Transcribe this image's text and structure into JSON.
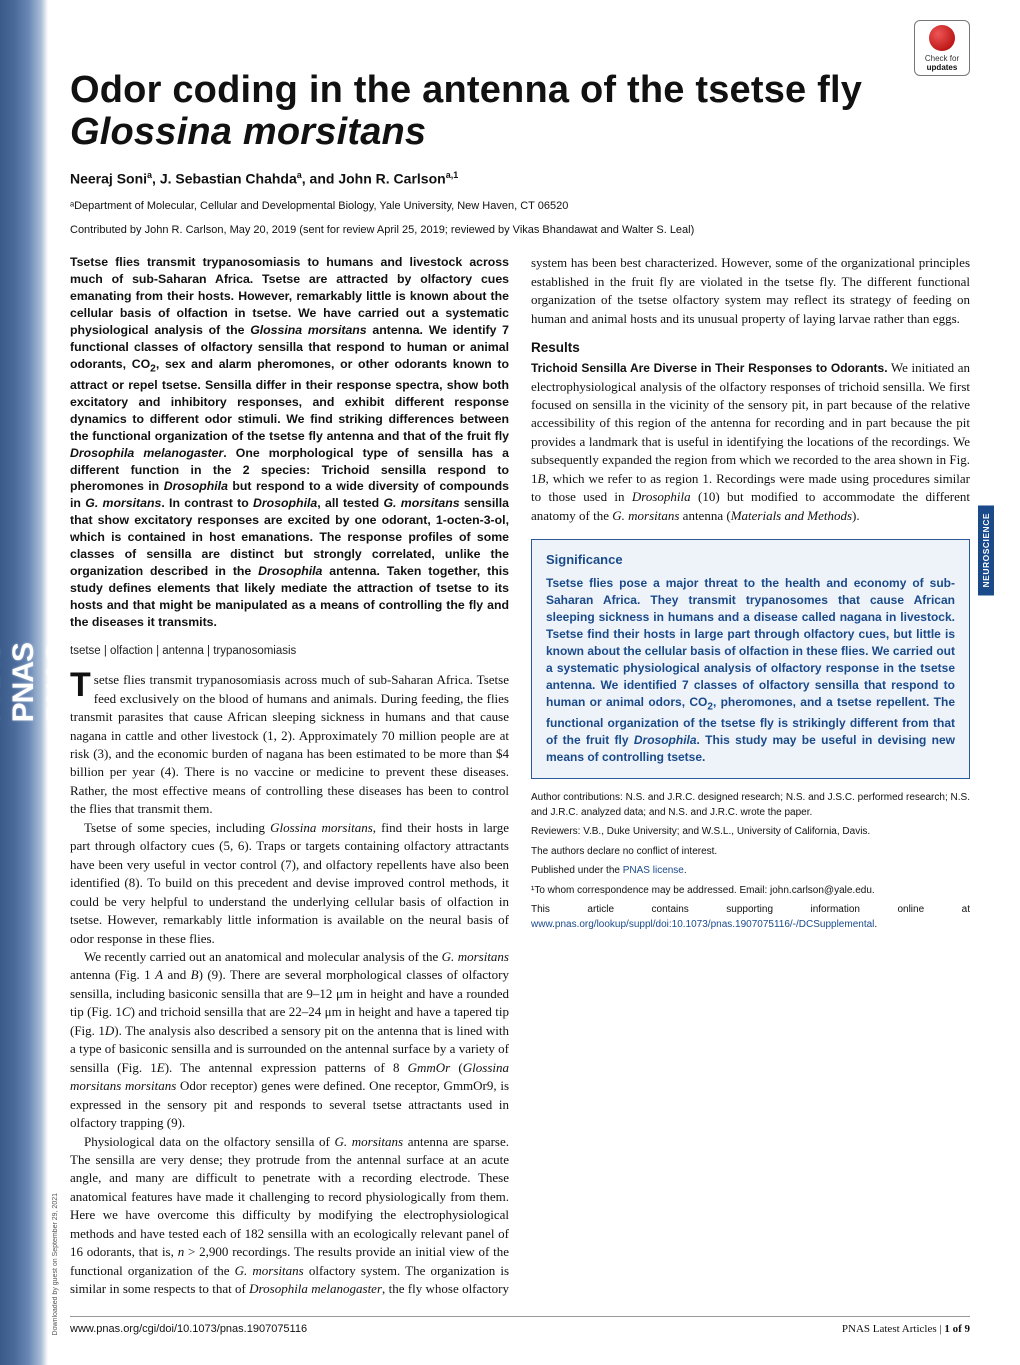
{
  "badge": {
    "line1": "Check for",
    "line2": "updates"
  },
  "title": {
    "plain": "Odor coding in the antenna of the tsetse fly",
    "italic": "Glossina morsitans"
  },
  "authors_html": "Neeraj Soni<sup>a</sup>, J. Sebastian Chahda<sup>a</sup>, and John R. Carlson<sup>a,1</sup>",
  "affiliation": "ᵃDepartment of Molecular, Cellular and Developmental Biology, Yale University, New Haven, CT 06520",
  "contributed": "Contributed by John R. Carlson, May 20, 2019 (sent for review April 25, 2019; reviewed by Vikas Bhandawat and Walter S. Leal)",
  "abstract": "Tsetse flies transmit trypanosomiasis to humans and livestock across much of sub-Saharan Africa. Tsetse are attracted by olfactory cues emanating from their hosts. However, remarkably little is known about the cellular basis of olfaction in tsetse. We have carried out a systematic physiological analysis of the <span class=\"ital\">Glossina morsitans</span> antenna. We identify 7 functional classes of olfactory sensilla that respond to human or animal odorants, CO<sub>2</sub>, sex and alarm pheromones, or other odorants known to attract or repel tsetse. Sensilla differ in their response spectra, show both excitatory and inhibitory responses, and exhibit different response dynamics to different odor stimuli. We find striking differences between the functional organization of the tsetse fly antenna and that of the fruit fly <span class=\"ital\">Drosophila melanogaster</span>. One morphological type of sensilla has a different function in the 2 species: Trichoid sensilla respond to pheromones in <span class=\"ital\">Drosophila</span> but respond to a wide diversity of compounds in <span class=\"ital\">G. morsitans</span>. In contrast to <span class=\"ital\">Drosophila</span>, all tested <span class=\"ital\">G. morsitans</span> sensilla that show excitatory responses are excited by one odorant, 1-octen-3-ol, which is contained in host emanations. The response profiles of some classes of sensilla are distinct but strongly correlated, unlike the organization described in the <span class=\"ital\">Drosophila</span> antenna. Taken together, this study defines elements that likely mediate the attraction of tsetse to its hosts and that might be manipulated as a means of controlling the fly and the diseases it transmits.",
  "keywords": "tsetse | olfaction | antenna | trypanosomiasis",
  "body_p1": "setse flies transmit trypanosomiasis across much of sub-Saharan Africa. Tsetse feed exclusively on the blood of humans and animals. During feeding, the flies transmit parasites that cause African sleeping sickness in humans and that cause nagana in cattle and other livestock (1, 2). Approximately 70 million people are at risk (3), and the economic burden of nagana has been estimated to be more than $4 billion per year (4). There is no vaccine or medicine to prevent these diseases. Rather, the most effective means of controlling these diseases has been to control the flies that transmit them.",
  "body_p2": "Tsetse of some species, including <i>Glossina morsitans</i>, find their hosts in large part through olfactory cues (5, 6). Traps or targets containing olfactory attractants have been very useful in vector control (7), and olfactory repellents have also been identified (8). To build on this precedent and devise improved control methods, it could be very helpful to understand the underlying cellular basis of olfaction in tsetse. However, remarkably little information is available on the neural basis of odor response in these flies.",
  "body_p3": "We recently carried out an anatomical and molecular analysis of the <i>G. morsitans</i> antenna (Fig. 1 <i>A</i> and <i>B</i>) (9). There are several morphological classes of olfactory sensilla, including basiconic sensilla that are 9–12 μm in height and have a rounded tip (Fig. 1<i>C</i>) and trichoid sensilla that are 22–24 μm in height and have a tapered tip (Fig. 1<i>D</i>). The analysis also described a sensory pit on the antenna that is lined with a type of basiconic sensilla and is surrounded on the antennal surface by a variety of sensilla (Fig. 1<i>E</i>). The antennal expression patterns of 8 <i>GmmOr</i> (<i>Glossina morsitans morsitans</i> Odor receptor) genes were defined. One receptor, GmmOr9, is expressed in the sensory pit and responds to several tsetse attractants used in olfactory trapping (9).",
  "col2_p1": "Physiological data on the olfactory sensilla of <i>G. morsitans</i> antenna are sparse. The sensilla are very dense; they protrude from the antennal surface at an acute angle, and many are difficult to penetrate with a recording electrode. These anatomical features have made it challenging to record physiologically from them. Here we have overcome this difficulty by modifying the electrophysiological methods and have tested each of 182 sensilla with an ecologically relevant panel of 16 odorants, that is, <i>n</i> &gt; 2,900 recordings. The results provide an initial view of the functional organization of the <i>G. morsitans</i> olfactory system. The organization is similar in some respects to that of <i>Drosophila melanogaster</i>, the fly whose olfactory system has been best characterized. However, some of the organizational principles established in the fruit fly are violated in the tsetse fly. The different functional organization of the tsetse olfactory system may reflect its strategy of feeding on human and animal hosts and its unusual property of laying larvae rather than eggs.",
  "results_head": "Results",
  "results_runin": "Trichoid Sensilla Are Diverse in Their Responses to Odorants.",
  "results_p1": " We initiated an electrophysiological analysis of the olfactory responses of trichoid sensilla. We first focused on sensilla in the vicinity of the sensory pit, in part because of the relative accessibility of this region of the antenna for recording and in part because the pit provides a landmark that is useful in identifying the locations of the recordings. We subsequently expanded the region from which we recorded to the area shown in Fig. 1<i>B</i>, which we refer to as region 1. Recordings were made using procedures similar to those used in <i>Drosophila</i> (10) but modified to accommodate the different anatomy of the <i>G. morsitans</i> antenna (<i>Materials and Methods</i>).",
  "significance": {
    "title": "Significance",
    "body": "Tsetse flies pose a major threat to the health and economy of sub-Saharan Africa. They transmit trypanosomes that cause African sleeping sickness in humans and a disease called nagana in livestock. Tsetse find their hosts in large part through olfactory cues, but little is known about the cellular basis of olfaction in these flies. We carried out a systematic physiological analysis of olfactory response in the tsetse antenna. We identified 7 classes of olfactory sensilla that respond to human or animal odors, CO<sub>2</sub>, pheromones, and a tsetse repellent. The functional organization of the tsetse fly is strikingly different from that of the fruit fly <i>Drosophila</i>. This study may be useful in devising new means of controlling tsetse."
  },
  "footnotes": {
    "contrib": "Author contributions: N.S. and J.R.C. designed research; N.S. and J.S.C. performed research; N.S. and J.R.C. analyzed data; and N.S. and J.R.C. wrote the paper.",
    "reviewers": "Reviewers: V.B., Duke University; and W.S.L., University of California, Davis.",
    "conflict": "The authors declare no conflict of interest.",
    "license_pre": "Published under the ",
    "license_link": "PNAS license",
    "license_post": ".",
    "corr": "¹To whom correspondence may be addressed. Email: john.carlson@yale.edu.",
    "supp_pre": "This article contains supporting information online at ",
    "supp_link": "www.pnas.org/lookup/suppl/doi:10.1073/pnas.1907075116/-/DCSupplemental",
    "supp_post": "."
  },
  "side_tab": "NEUROSCIENCE",
  "footer": {
    "doi": "www.pnas.org/cgi/doi/10.1073/pnas.1907075116",
    "right_pre": "PNAS Latest Articles | ",
    "right_bold": "1 of 9"
  },
  "download_note": "Downloaded by guest on September 29, 2021",
  "colors": {
    "accent": "#1a4a8a",
    "sig_bg": "#eef3f9",
    "sidebar_grad_start": "#3a5a8a",
    "sidebar_grad_end": "#ffffff"
  }
}
